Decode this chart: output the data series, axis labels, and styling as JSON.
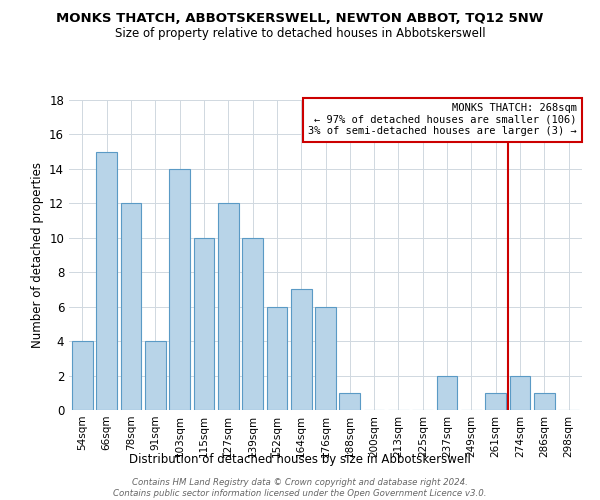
{
  "title": "MONKS THATCH, ABBOTSKERSWELL, NEWTON ABBOT, TQ12 5NW",
  "subtitle": "Size of property relative to detached houses in Abbotskerswell",
  "xlabel": "Distribution of detached houses by size in Abbotskerswell",
  "ylabel": "Number of detached properties",
  "bar_labels": [
    "54sqm",
    "66sqm",
    "78sqm",
    "91sqm",
    "103sqm",
    "115sqm",
    "127sqm",
    "139sqm",
    "152sqm",
    "164sqm",
    "176sqm",
    "188sqm",
    "200sqm",
    "213sqm",
    "225sqm",
    "237sqm",
    "249sqm",
    "261sqm",
    "274sqm",
    "286sqm",
    "298sqm"
  ],
  "bar_values": [
    4,
    15,
    12,
    4,
    14,
    10,
    12,
    10,
    6,
    7,
    6,
    1,
    0,
    0,
    0,
    2,
    0,
    1,
    2,
    1,
    0
  ],
  "bar_color": "#b8d4e8",
  "bar_edge_color": "#5a9ac5",
  "annotation_line_x_label": "261sqm",
  "annotation_line_color": "#cc0000",
  "annotation_box_text": "MONKS THATCH: 268sqm\n← 97% of detached houses are smaller (106)\n3% of semi-detached houses are larger (3) →",
  "ylim": [
    0,
    18
  ],
  "yticks": [
    0,
    2,
    4,
    6,
    8,
    10,
    12,
    14,
    16,
    18
  ],
  "footer_text": "Contains HM Land Registry data © Crown copyright and database right 2024.\nContains public sector information licensed under the Open Government Licence v3.0.",
  "background_color": "#ffffff",
  "grid_color": "#d0d8e0"
}
